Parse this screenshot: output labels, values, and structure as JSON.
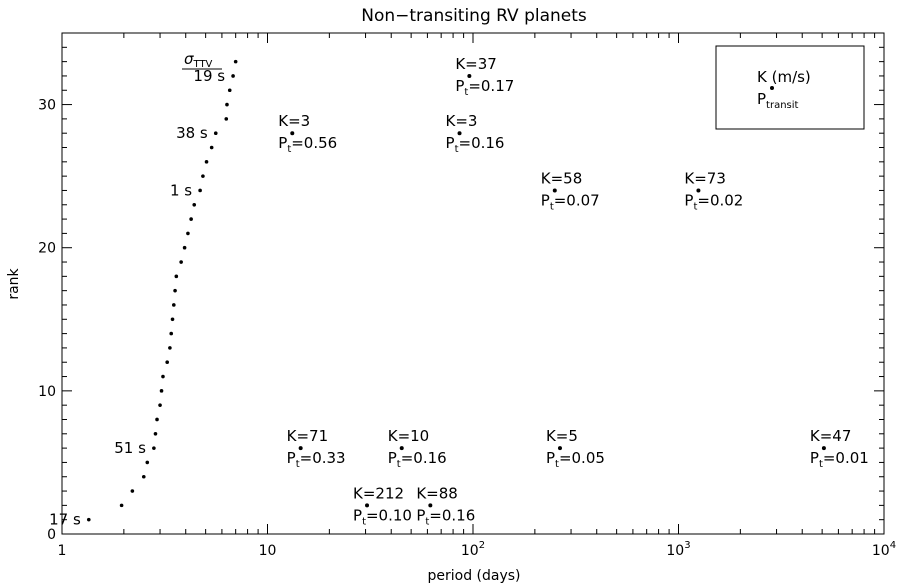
{
  "chart_data": {
    "type": "scatter",
    "title": "Non−transiting RV planets",
    "xlabel": "period (days)",
    "ylabel": "rank",
    "xscale": "log",
    "xlim": [
      1,
      10000
    ],
    "ylim": [
      0,
      35
    ],
    "x_ticks": [
      {
        "value": 1,
        "label": "1"
      },
      {
        "value": 10,
        "label": "10"
      },
      {
        "value": 100,
        "label": "10",
        "sup": "2"
      },
      {
        "value": 1000,
        "label": "10",
        "sup": "3"
      },
      {
        "value": 10000,
        "label": "10",
        "sup": "4"
      }
    ],
    "y_ticks": [
      0,
      10,
      20,
      30
    ],
    "grid": false,
    "legend": {
      "placement": "top-right",
      "line1": "K (m/s)",
      "line2_base": "P",
      "line2_sub": "transit"
    },
    "series": [
      {
        "points": [
          [
            1.35,
            1
          ],
          [
            1.95,
            2
          ],
          [
            2.2,
            3
          ],
          [
            2.5,
            4
          ],
          [
            2.6,
            5
          ],
          [
            2.8,
            6
          ],
          [
            2.85,
            7
          ],
          [
            2.9,
            8
          ],
          [
            3.0,
            9
          ],
          [
            3.05,
            10
          ],
          [
            3.1,
            11
          ],
          [
            3.25,
            12
          ],
          [
            3.35,
            13
          ],
          [
            3.4,
            14
          ],
          [
            3.45,
            15
          ],
          [
            3.5,
            16
          ],
          [
            3.55,
            17
          ],
          [
            3.6,
            18
          ],
          [
            3.8,
            19
          ],
          [
            3.95,
            20
          ],
          [
            4.1,
            21
          ],
          [
            4.25,
            22
          ],
          [
            4.4,
            23
          ],
          [
            4.7,
            24
          ],
          [
            4.85,
            25
          ],
          [
            5.05,
            26
          ],
          [
            5.35,
            27
          ],
          [
            5.6,
            28
          ],
          [
            6.3,
            29
          ],
          [
            6.35,
            30
          ],
          [
            6.55,
            31
          ],
          [
            6.8,
            32
          ],
          [
            7.0,
            33
          ]
        ],
        "point_labels": [
          {
            "rank": 1,
            "text": "17  s"
          },
          {
            "rank": 6,
            "text": "51  s"
          },
          {
            "rank": 24,
            "text": "1  s"
          },
          {
            "rank": 28,
            "text": "38  s"
          },
          {
            "rank": 32,
            "text": "19  s"
          }
        ]
      },
      {
        "planets": [
          {
            "period": 13.2,
            "rank": 28,
            "K": "K=3",
            "Pt": "=0.56"
          },
          {
            "period": 86,
            "rank": 28,
            "K": "K=3",
            "Pt": "=0.16"
          },
          {
            "period": 96,
            "rank": 32,
            "K": "K=37",
            "Pt": "=0.17"
          },
          {
            "period": 250,
            "rank": 24,
            "K": "K=58",
            "Pt": "=0.07"
          },
          {
            "period": 1250,
            "rank": 24,
            "K": "K=73",
            "Pt": "=0.02"
          },
          {
            "period": 14.5,
            "rank": 6,
            "K": "K=71",
            "Pt": "=0.33"
          },
          {
            "period": 45,
            "rank": 6,
            "K": "K=10",
            "Pt": "=0.16"
          },
          {
            "period": 265,
            "rank": 6,
            "K": "K=5",
            "Pt": "=0.05"
          },
          {
            "period": 5100,
            "rank": 6,
            "K": "K=47",
            "Pt": "=0.01"
          },
          {
            "period": 30.5,
            "rank": 2,
            "K": "K=212",
            "Pt": "=0.10"
          },
          {
            "period": 62,
            "rank": 2,
            "K": "K=88",
            "Pt": "=0.16"
          }
        ]
      }
    ],
    "annotations": {
      "sigma_label_base": "σ",
      "sigma_label_sub": "TTV",
      "pt_base": "P",
      "pt_sub": "t"
    }
  }
}
